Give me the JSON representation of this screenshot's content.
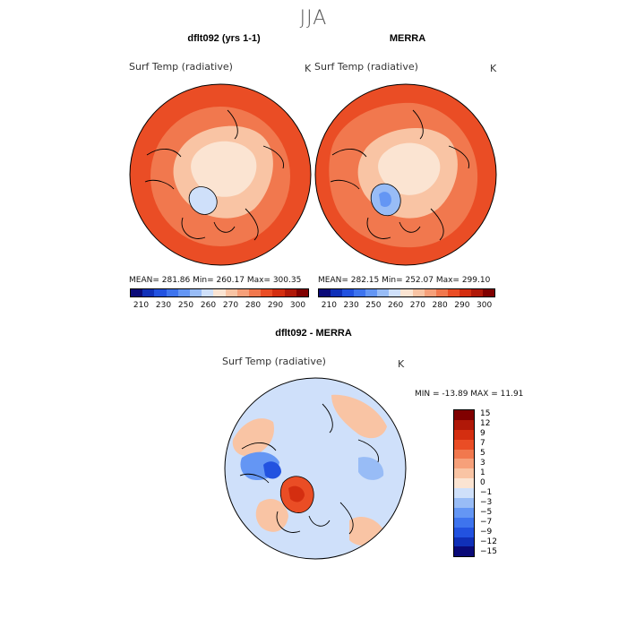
{
  "title": "JJA",
  "panels": [
    {
      "id": "model",
      "title": "dflt092 (yrs 1-1)",
      "variable": "Surf Temp (radiative)",
      "units": "K",
      "stats_text": "MEAN= 281.86   Min= 260.17   Max= 300.35"
    },
    {
      "id": "obs",
      "title": "MERRA",
      "variable": "Surf Temp (radiative)",
      "units": "K",
      "stats_text": "MEAN= 282.15   Min= 252.07   Max= 299.10"
    },
    {
      "id": "diff",
      "title": "dflt092 - MERRA",
      "variable": "Surf Temp (radiative)",
      "units": "K",
      "stats_text": "MIN = -13.89 MAX =  11.91"
    }
  ],
  "colorbar_abs": {
    "ticks": [
      "210",
      "230",
      "250",
      "260",
      "270",
      "280",
      "290",
      "300"
    ],
    "colors": [
      "#0a0a78",
      "#1030b8",
      "#2252e0",
      "#3e74ee",
      "#6496f4",
      "#98bcf6",
      "#cfe0fa",
      "#fbe4d2",
      "#f9c4a4",
      "#f6a07a",
      "#f1784e",
      "#ea4d25",
      "#d42e10",
      "#b01808",
      "#800000"
    ]
  },
  "colorbar_diff": {
    "ticks": [
      "15",
      "12",
      "9",
      "7",
      "5",
      "3",
      "1",
      "0",
      "−1",
      "−3",
      "−5",
      "−7",
      "−9",
      "−12",
      "−15"
    ],
    "colors": [
      "#800000",
      "#b01808",
      "#d42e10",
      "#ea4d25",
      "#f1784e",
      "#f6a07a",
      "#f9c4a4",
      "#fbe4d2",
      "#cfe0fa",
      "#98bcf6",
      "#6496f4",
      "#3e74ee",
      "#2252e0",
      "#1030b8",
      "#0a0a78"
    ]
  },
  "colors": {
    "land_outline": "#000000",
    "warm": "#ea4d25",
    "mid": "#f1784e",
    "cool": "#f9c4a4",
    "ice": "#fbe4d2",
    "greenland": "#cfe0fa",
    "diff_bg": "#cfe0fa",
    "diff_pos": "#f9c4a4",
    "diff_neg": "#6496f4"
  }
}
